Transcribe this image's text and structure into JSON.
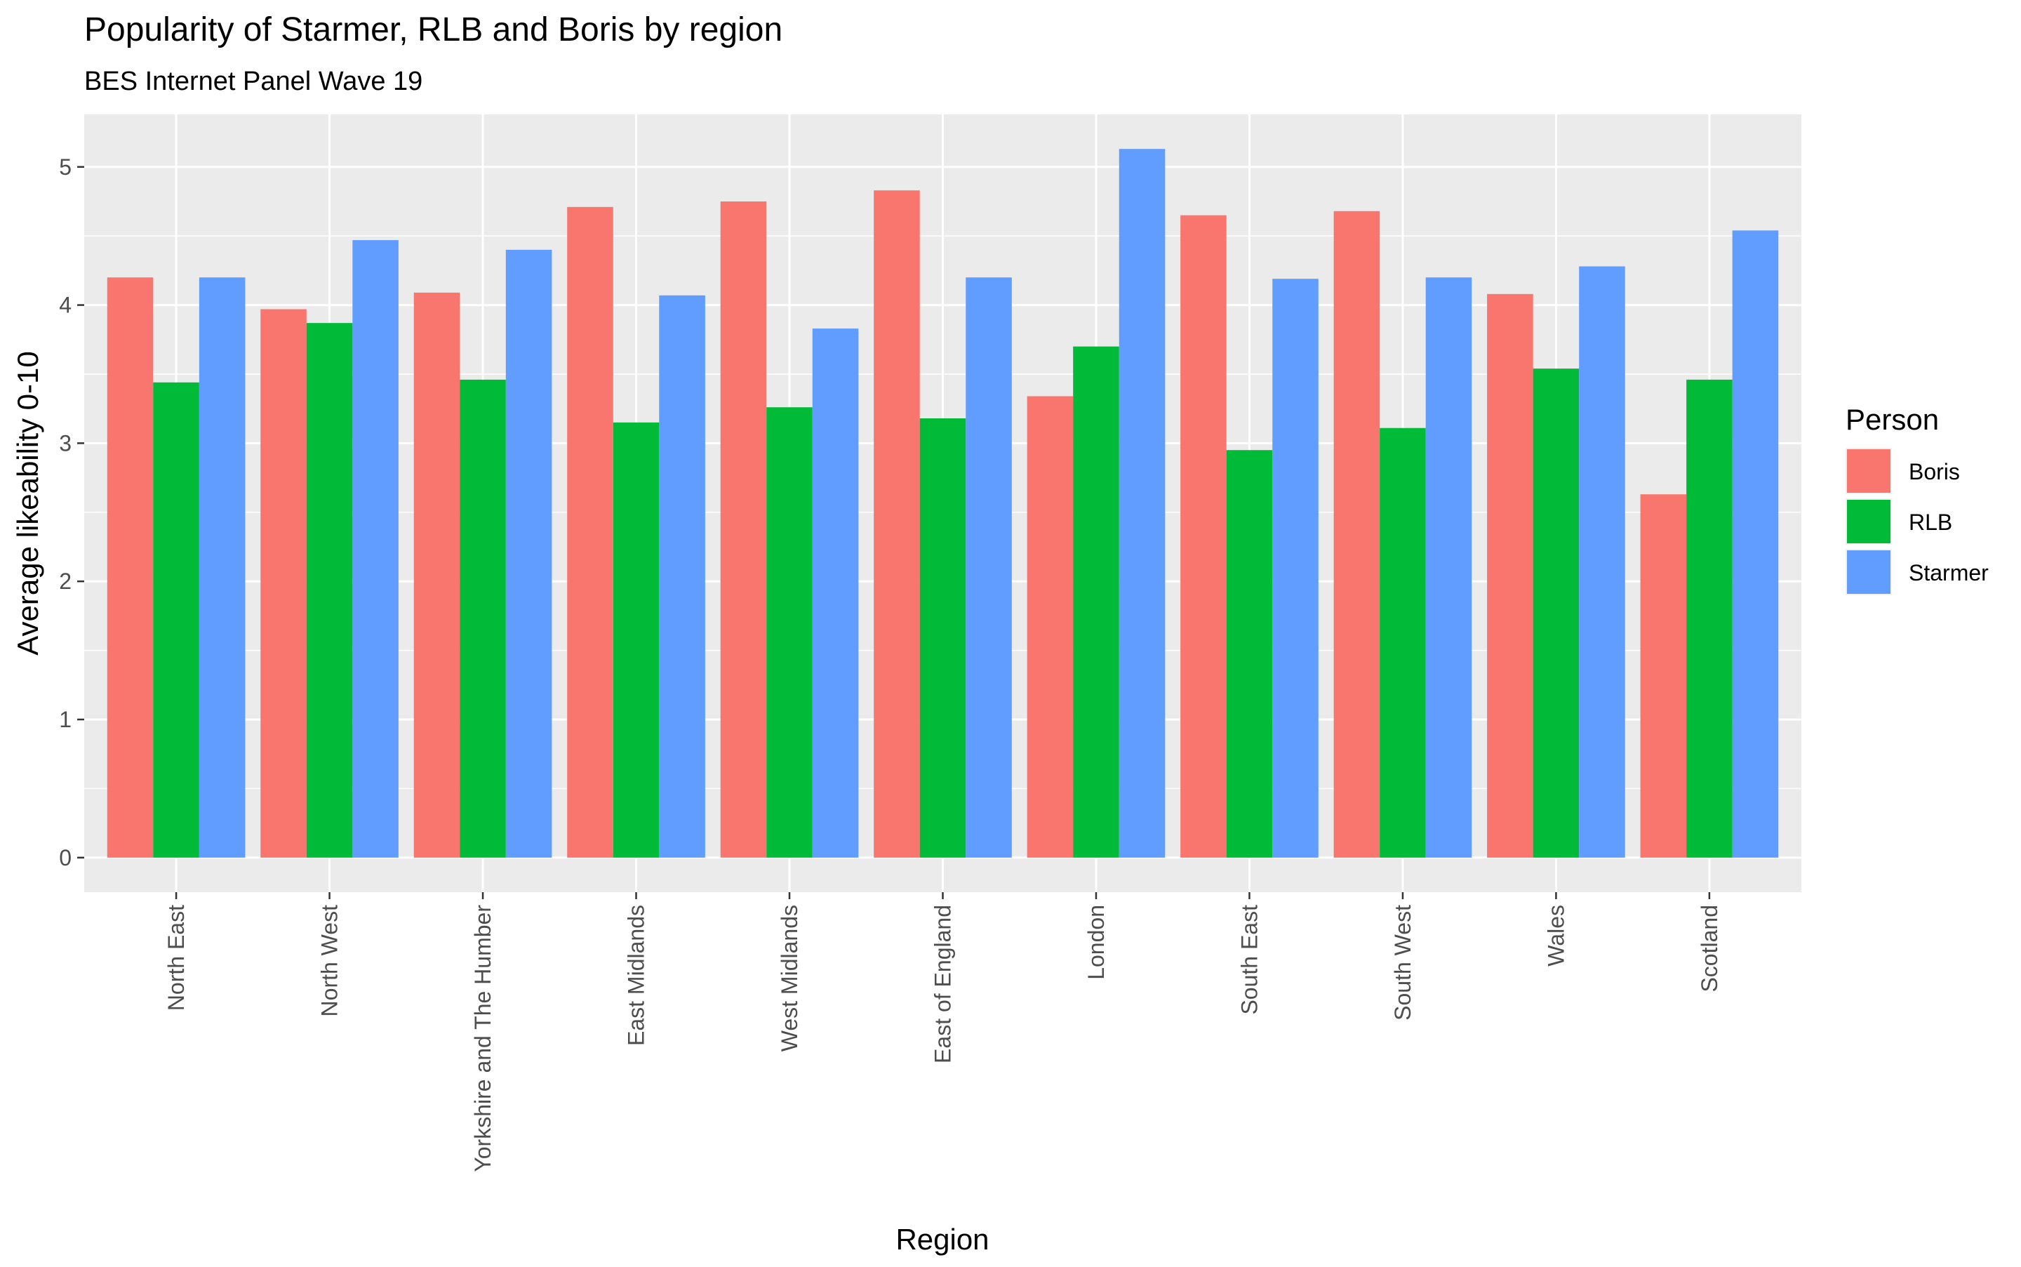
{
  "chart_data": {
    "type": "bar",
    "title": "Popularity of Starmer, RLB and Boris by region",
    "subtitle": "BES Internet Panel Wave 19",
    "xlabel": "Region",
    "ylabel": "Average likeability 0-10",
    "ylim": [
      -0.25,
      5.38
    ],
    "yticks": [
      0,
      1,
      2,
      3,
      4,
      5
    ],
    "grid": true,
    "legend_position": "right",
    "legend_title": "Person",
    "categories": [
      "North East",
      "North West",
      "Yorkshire and The Humber",
      "East Midlands",
      "West Midlands",
      "East of England",
      "London",
      "South East",
      "South West",
      "Wales",
      "Scotland"
    ],
    "series": [
      {
        "name": "Boris",
        "color": "#F8766D",
        "values": [
          4.2,
          3.97,
          4.09,
          4.71,
          4.75,
          4.83,
          3.34,
          4.65,
          4.68,
          4.08,
          2.63
        ]
      },
      {
        "name": "RLB",
        "color": "#00BA38",
        "values": [
          3.44,
          3.87,
          3.46,
          3.15,
          3.26,
          3.18,
          3.7,
          2.95,
          3.11,
          3.54,
          3.46
        ]
      },
      {
        "name": "Starmer",
        "color": "#619CFF",
        "values": [
          4.2,
          4.47,
          4.4,
          4.07,
          3.83,
          4.2,
          5.13,
          4.19,
          4.2,
          4.28,
          4.54
        ]
      }
    ]
  }
}
